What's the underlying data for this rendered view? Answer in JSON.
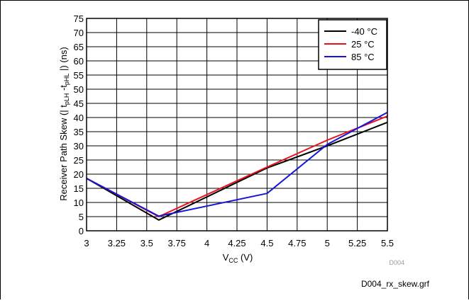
{
  "chart_data": {
    "type": "line",
    "xlabel_main": "V",
    "xlabel_sub": "CC",
    "xlabel_unit": " (V)",
    "ylabel_pre": "Receiver Path Skew (| t",
    "ylabel_sub1": "pLH",
    "ylabel_mid": " -t",
    "ylabel_sub2": "pHL",
    "ylabel_post": " |) (ns)",
    "xlim": [
      3,
      5.5
    ],
    "ylim": [
      0,
      75
    ],
    "x_ticks": [
      3,
      3.25,
      3.5,
      3.75,
      4,
      4.25,
      4.5,
      4.75,
      5,
      5.25,
      5.5
    ],
    "x_tick_labels": [
      "3",
      "3.25",
      "3.5",
      "3.75",
      "4",
      "4.25",
      "4.5",
      "4.75",
      "5",
      "5.25",
      "5.5"
    ],
    "y_ticks": [
      0,
      5,
      10,
      15,
      20,
      25,
      30,
      35,
      40,
      45,
      50,
      55,
      60,
      65,
      70,
      75
    ],
    "y_tick_labels": [
      "0",
      "5",
      "10",
      "15",
      "20",
      "25",
      "30",
      "35",
      "40",
      "45",
      "50",
      "55",
      "60",
      "65",
      "70",
      "75"
    ],
    "grid": true,
    "legend_position": "top-right",
    "series": [
      {
        "name": "-40 °C",
        "color": "#000000",
        "x": [
          3,
          3.6,
          4.5,
          5.0,
          5.5
        ],
        "y": [
          18.5,
          3.8,
          22.2,
          30.0,
          38.3
        ]
      },
      {
        "name": "25 °C",
        "color": "#e8101c",
        "x": [
          3,
          3.6,
          4.5,
          5.0,
          5.5
        ],
        "y": [
          18.5,
          5.0,
          22.5,
          32.0,
          40.5
        ]
      },
      {
        "name": "85 °C",
        "color": "#1515d8",
        "x": [
          3,
          3.6,
          3.75,
          4.5,
          5.0,
          5.5
        ],
        "y": [
          18.5,
          5.2,
          6.5,
          13.2,
          30.5,
          41.8
        ]
      }
    ],
    "code_label": "D004",
    "file_label": "D004_rx_skew.grf"
  }
}
